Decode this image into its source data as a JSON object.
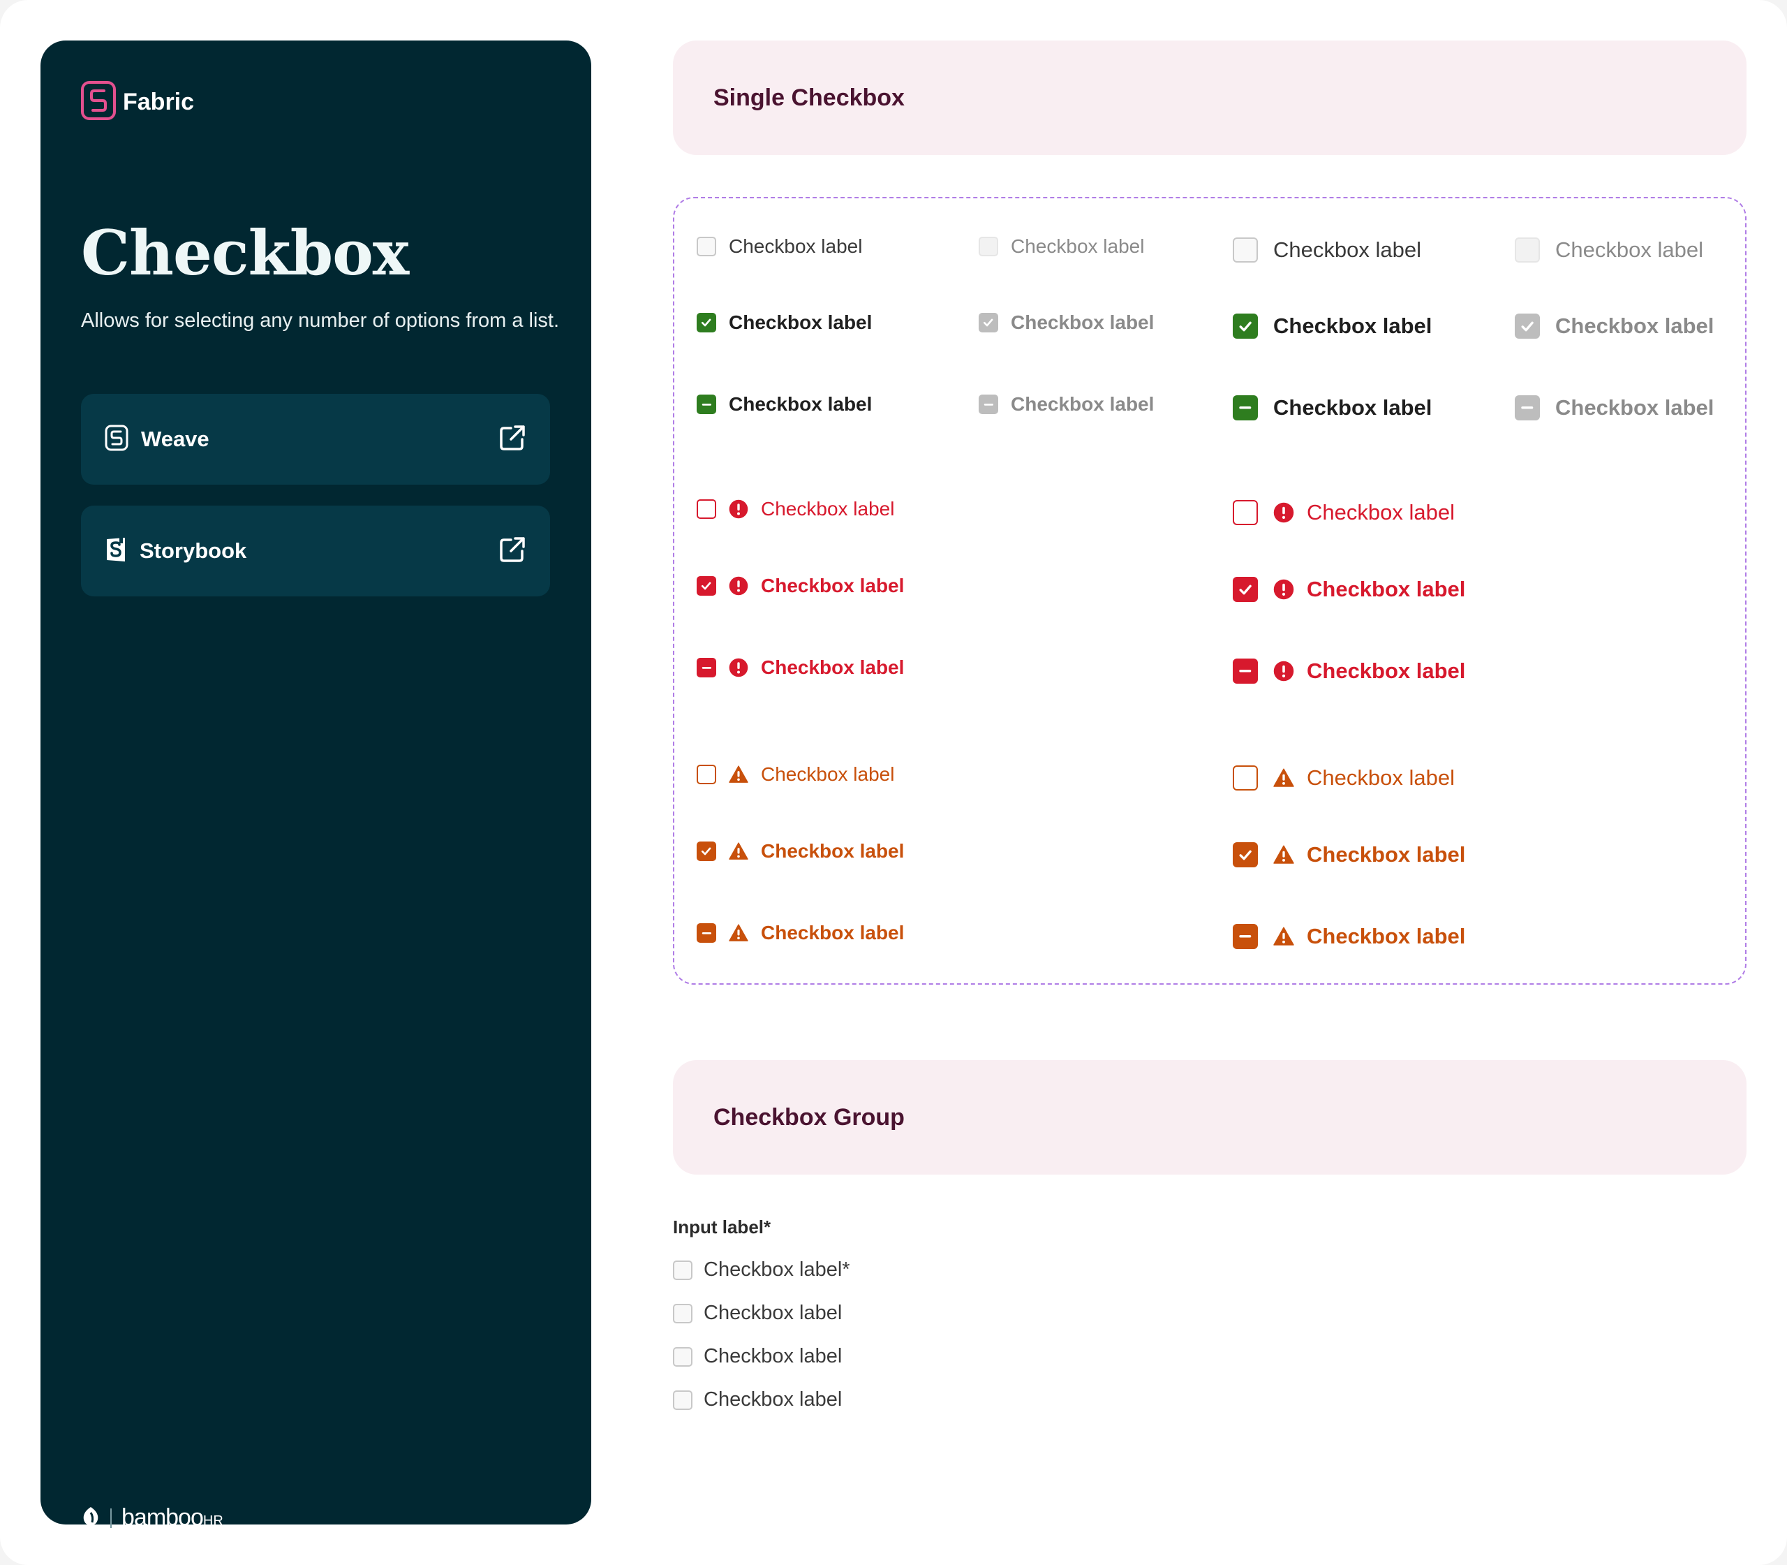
{
  "sidebar": {
    "brand": "Fabric",
    "title": "Checkbox",
    "description": "Allows for selecting any number of options from a list.",
    "links": [
      {
        "label": "Weave",
        "icon": "weave-logo-icon"
      },
      {
        "label": "Storybook",
        "icon": "storybook-logo-icon"
      }
    ],
    "footer_brand": "bamboo",
    "footer_brand_suffix": "HR"
  },
  "sections": {
    "single_title": "Single Checkbox",
    "group_title": "Checkbox Group"
  },
  "single": {
    "label": "Checkbox label",
    "colors": {
      "default_text": "#3a3a3a",
      "disabled_text": "#8a8a8a",
      "checked_fill": "#2e7d1f",
      "disabled_fill": "#bdbdbd",
      "error": "#d7192d",
      "warning": "#c8500b"
    }
  },
  "group": {
    "input_label": "Input label*",
    "items": [
      {
        "label": "Checkbox label*"
      },
      {
        "label": "Checkbox label"
      },
      {
        "label": "Checkbox label"
      },
      {
        "label": "Checkbox label"
      }
    ]
  }
}
